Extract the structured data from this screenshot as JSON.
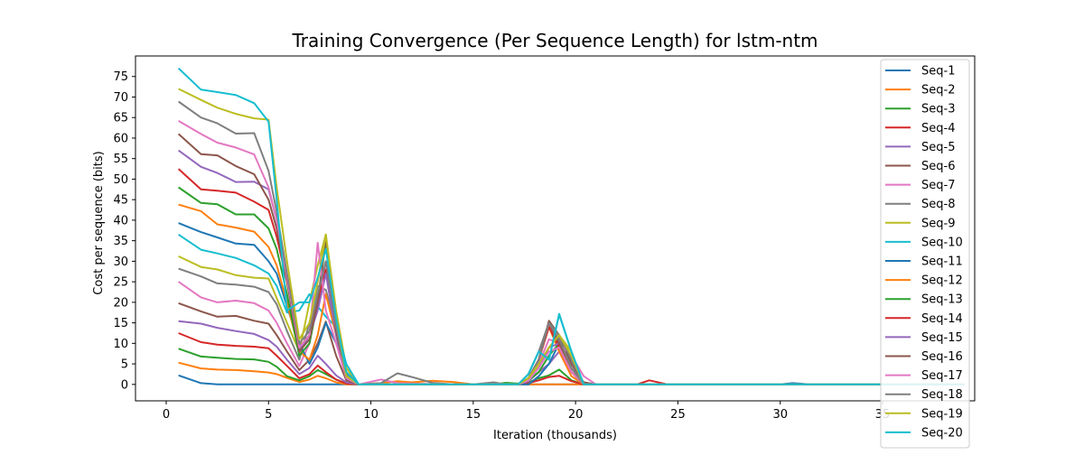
{
  "chart_data": {
    "type": "line",
    "title": "Training Convergence (Per Sequence Length) for lstm-ntm",
    "xlabel": "Iteration (thousands)",
    "ylabel": "Cost per sequence (bits)",
    "xlim": [
      -1.5,
      39.5
    ],
    "ylim": [
      -4,
      80
    ],
    "xticks": [
      0,
      5,
      10,
      15,
      20,
      25,
      30,
      35
    ],
    "yticks": [
      0,
      5,
      10,
      15,
      20,
      25,
      30,
      35,
      40,
      45,
      50,
      55,
      60,
      65,
      70,
      75
    ],
    "grid": false,
    "legend_position": "top-right",
    "colors": [
      "#1f77b4",
      "#ff7f0e",
      "#2ca02c",
      "#d62728",
      "#9467bd",
      "#8c564b",
      "#e377c2",
      "#7f7f7f",
      "#bcbd22",
      "#17becf"
    ],
    "x": [
      0.6,
      1.7,
      2.5,
      3.4,
      4.3,
      5.0,
      5.4,
      5.9,
      6.5,
      7.0,
      7.4,
      7.8,
      8.3,
      8.8,
      9.4,
      10.5,
      11.3,
      12.0,
      13.0,
      14.0,
      15.0,
      16.0,
      16.6,
      17.2,
      17.7,
      18.2,
      18.7,
      19.2,
      19.8,
      20.4,
      21.0,
      22.0,
      23.0,
      23.6,
      24.5,
      26.0,
      28.0,
      30.0,
      30.6,
      31.5,
      33.0,
      35.0,
      37.0,
      39.0
    ],
    "series": [
      {
        "name": "Seq-1",
        "values": [
          2.2,
          0.3,
          0,
          0,
          0,
          0,
          0,
          0,
          0,
          0,
          0,
          0,
          0,
          0,
          0,
          0,
          0,
          0,
          0,
          0,
          0,
          0,
          0,
          0,
          0,
          0,
          0,
          0,
          0,
          0,
          0,
          0,
          0,
          0,
          0,
          0,
          0,
          0,
          0,
          0,
          0,
          0,
          0,
          0
        ]
      },
      {
        "name": "Seq-2",
        "values": [
          5.3,
          3.9,
          3.6,
          3.5,
          3.2,
          2.9,
          2.5,
          1.6,
          0.6,
          1.2,
          2.1,
          1.5,
          0.5,
          0,
          0,
          0.3,
          0.8,
          0.5,
          0.9,
          0.6,
          0,
          0,
          0,
          0,
          0,
          0,
          0,
          0,
          0,
          0,
          0,
          0,
          0,
          0,
          0,
          0,
          0,
          0,
          0,
          0,
          0,
          0,
          0,
          0
        ]
      },
      {
        "name": "Seq-3",
        "values": [
          8.7,
          6.8,
          6.5,
          6.2,
          6.1,
          5.5,
          4.3,
          2.0,
          1.0,
          2.0,
          3.5,
          2.5,
          1.2,
          0.2,
          0,
          0,
          0,
          0,
          0,
          0,
          0,
          0,
          0.4,
          0.2,
          0.5,
          1.5,
          2.2,
          3.6,
          1.0,
          0,
          0,
          0,
          0,
          0,
          0,
          0,
          0,
          0,
          0,
          0,
          0,
          0,
          0,
          0
        ]
      },
      {
        "name": "Seq-4",
        "values": [
          12.5,
          10.3,
          9.7,
          9.4,
          9.2,
          8.8,
          7.0,
          4.5,
          1.5,
          2.5,
          4.6,
          3.0,
          1.2,
          0.2,
          0,
          0,
          0,
          0,
          0,
          0,
          0,
          0,
          0,
          0,
          0.3,
          1.0,
          1.8,
          2.1,
          0.8,
          0,
          0,
          0,
          0,
          1.0,
          0,
          0,
          0,
          0,
          0,
          0,
          0,
          0,
          0,
          0
        ]
      },
      {
        "name": "Seq-5",
        "values": [
          15.4,
          14.8,
          13.8,
          13.0,
          12.3,
          10.8,
          9.2,
          6.0,
          2.5,
          4.0,
          7.0,
          5.0,
          2.2,
          0.5,
          0,
          0,
          0,
          0,
          0,
          0,
          0,
          0,
          0,
          0,
          0.8,
          3.0,
          5.0,
          8.0,
          4.0,
          0.5,
          0,
          0,
          0,
          0,
          0,
          0,
          0,
          0,
          0,
          0,
          0,
          0,
          0,
          0
        ]
      },
      {
        "name": "Seq-6",
        "values": [
          19.8,
          17.8,
          16.5,
          16.7,
          15.5,
          14.8,
          12.0,
          8.0,
          3.5,
          6.0,
          10.0,
          15.3,
          7.0,
          1.0,
          0,
          0,
          0,
          0,
          0,
          0,
          0,
          0,
          0,
          0,
          1.5,
          6.0,
          15.5,
          12.0,
          5.0,
          0.5,
          0,
          0,
          0,
          0,
          0,
          0,
          0,
          0,
          0,
          0,
          0,
          0,
          0,
          0
        ]
      },
      {
        "name": "Seq-7",
        "values": [
          25.0,
          21.2,
          20.0,
          20.4,
          19.8,
          18.0,
          15.0,
          10.0,
          4.5,
          10.0,
          20.0,
          30.0,
          12.0,
          2.0,
          0,
          1.2,
          0.3,
          0.2,
          0.1,
          0,
          0,
          0,
          0,
          0,
          1.0,
          5.0,
          11.0,
          10.0,
          7.0,
          2.0,
          0,
          0,
          0,
          0,
          0,
          0,
          0,
          0,
          0,
          0,
          0,
          0,
          0,
          0
        ]
      },
      {
        "name": "Seq-8",
        "values": [
          28.2,
          26.3,
          24.6,
          24.3,
          23.8,
          22.5,
          19.5,
          13.0,
          6.0,
          15.0,
          24.0,
          23.0,
          14.0,
          2.5,
          0,
          0.3,
          2.7,
          1.8,
          0.4,
          0,
          0,
          0.5,
          0,
          0,
          2.5,
          8.0,
          15.0,
          12.0,
          6.0,
          0,
          0,
          0,
          0,
          0,
          0,
          0,
          0,
          0,
          0,
          0,
          0,
          0,
          0,
          0
        ]
      },
      {
        "name": "Seq-9",
        "values": [
          31.2,
          28.6,
          28.0,
          26.6,
          26.0,
          25.8,
          21.0,
          15.0,
          8.0,
          20.0,
          29.0,
          36.5,
          18.0,
          4.0,
          0,
          0,
          0,
          0,
          0,
          0,
          0,
          0,
          0,
          0,
          1.5,
          4.5,
          9.0,
          12.0,
          8.0,
          0,
          0,
          0,
          0,
          0,
          0,
          0,
          0,
          0,
          0,
          0,
          0,
          0,
          0,
          0
        ]
      },
      {
        "name": "Seq-10",
        "values": [
          36.5,
          32.8,
          31.9,
          30.8,
          29.0,
          27.0,
          24.0,
          17.5,
          18.0,
          22.0,
          19.0,
          16.5,
          14.0,
          5.0,
          0,
          0,
          0,
          0,
          0,
          0,
          0,
          0,
          0,
          0,
          2.5,
          8.0,
          6.0,
          17.0,
          8.0,
          0,
          0,
          0,
          0,
          0,
          0,
          0,
          0,
          0,
          0,
          0,
          0,
          0,
          0,
          0
        ]
      },
      {
        "name": "Seq-11",
        "values": [
          39.3,
          37.1,
          35.8,
          34.3,
          34.0,
          30.0,
          27.0,
          19.0,
          10.0,
          5.0,
          9.0,
          15.0,
          10.0,
          3.0,
          0,
          0,
          0,
          0,
          0,
          0,
          0,
          0,
          0,
          0,
          0,
          2.0,
          5.0,
          10.0,
          4.0,
          0,
          0,
          0,
          0,
          0,
          0,
          0,
          0,
          0,
          0.3,
          0,
          0,
          0,
          0,
          0
        ]
      },
      {
        "name": "Seq-12",
        "values": [
          43.8,
          42.2,
          39.0,
          38.2,
          37.2,
          33.5,
          29.0,
          20.0,
          8.0,
          6.0,
          12.0,
          22.0,
          12.0,
          2.0,
          0,
          0,
          0,
          0,
          0,
          0,
          0,
          0,
          0,
          0,
          1.5,
          6.0,
          14.0,
          8.0,
          2.0,
          0,
          0,
          0,
          0,
          0,
          0,
          0,
          0,
          0,
          0,
          0,
          0,
          0,
          0,
          0
        ]
      },
      {
        "name": "Seq-13",
        "values": [
          48.0,
          44.2,
          43.9,
          41.4,
          41.4,
          38.0,
          33.0,
          22.0,
          7.0,
          10.0,
          20.0,
          35.0,
          12.0,
          1.5,
          0,
          0,
          0,
          0,
          0,
          0,
          0,
          0,
          0,
          0,
          1.0,
          3.0,
          7.0,
          10.0,
          4.0,
          0,
          0,
          0,
          0,
          0,
          0,
          0,
          0,
          0,
          0,
          0,
          0,
          0,
          0,
          0
        ]
      },
      {
        "name": "Seq-14",
        "values": [
          52.5,
          47.5,
          47.2,
          46.7,
          44.5,
          42.5,
          36.0,
          25.0,
          9.0,
          12.0,
          20.0,
          28.0,
          14.0,
          1.5,
          0,
          0,
          0,
          0,
          0,
          0,
          0,
          0,
          0,
          0,
          1.5,
          6.0,
          14.0,
          9.0,
          3.0,
          0,
          0,
          0,
          0,
          0,
          0,
          0,
          0,
          0,
          0,
          0,
          0,
          0,
          0,
          0
        ]
      },
      {
        "name": "Seq-15",
        "values": [
          57.0,
          53.0,
          51.5,
          49.3,
          49.4,
          47.5,
          40.0,
          26.0,
          8.0,
          12.0,
          18.0,
          27.0,
          12.0,
          1.5,
          0,
          0,
          0,
          0,
          0,
          0,
          0,
          0,
          0,
          0,
          1.0,
          4.0,
          9.0,
          10.0,
          4.0,
          0,
          0,
          0,
          0,
          0,
          0,
          0,
          0,
          0,
          0,
          0,
          0,
          0,
          0,
          0
        ]
      },
      {
        "name": "Seq-16",
        "values": [
          61.0,
          56.1,
          55.8,
          53.2,
          51.2,
          45.0,
          38.0,
          25.0,
          8.0,
          11.0,
          20.0,
          35.8,
          13.0,
          2.0,
          0,
          0,
          0,
          0,
          0,
          0,
          0,
          0,
          0,
          0,
          1.5,
          6.0,
          15.0,
          10.0,
          3.0,
          0,
          0,
          0,
          0,
          0,
          0,
          0,
          0,
          0,
          0,
          0,
          0,
          0,
          0,
          0
        ]
      },
      {
        "name": "Seq-17",
        "values": [
          64.2,
          61.0,
          58.9,
          57.7,
          56.0,
          48.0,
          40.0,
          26.0,
          9.0,
          12.0,
          34.5,
          18.0,
          10.0,
          1.5,
          0,
          0,
          0,
          0,
          0,
          0,
          0,
          0,
          0,
          0,
          1.0,
          4.0,
          8.0,
          9.0,
          3.0,
          0,
          0,
          0,
          0,
          0,
          0,
          0,
          0,
          0,
          0,
          0,
          0,
          0,
          0,
          0
        ]
      },
      {
        "name": "Seq-18",
        "values": [
          68.9,
          65.0,
          63.6,
          61.1,
          61.2,
          52.0,
          42.0,
          27.0,
          10.0,
          13.0,
          22.0,
          30.0,
          14.0,
          2.0,
          0,
          0,
          0,
          0,
          0,
          0,
          0,
          0,
          0,
          0,
          1.5,
          6.0,
          15.0,
          11.0,
          4.0,
          0,
          0,
          0,
          0,
          0,
          0,
          0,
          0,
          0,
          0,
          0,
          0,
          0,
          0,
          0
        ]
      },
      {
        "name": "Seq-19",
        "values": [
          72.0,
          69.3,
          67.4,
          65.9,
          64.8,
          64.5,
          48.0,
          30.0,
          11.0,
          15.0,
          25.0,
          36.5,
          16.0,
          2.0,
          0,
          0,
          0,
          0,
          0,
          0,
          0,
          0,
          0,
          0,
          1.5,
          5.0,
          9.0,
          12.0,
          7.0,
          0,
          0,
          0,
          0,
          0,
          0,
          0,
          0,
          0,
          0,
          0,
          0,
          0,
          0,
          0
        ]
      },
      {
        "name": "Seq-20",
        "values": [
          77.0,
          71.8,
          71.2,
          70.5,
          68.5,
          64.0,
          45.0,
          18.0,
          20.0,
          20.0,
          26.0,
          33.0,
          16.0,
          3.0,
          0,
          0,
          0,
          0,
          0,
          0,
          0,
          0,
          0,
          0,
          2.5,
          8.0,
          6.0,
          17.2,
          8.0,
          0,
          0,
          0,
          0,
          0,
          0,
          0,
          0,
          0,
          0,
          0,
          0,
          0,
          0,
          0
        ]
      }
    ]
  }
}
